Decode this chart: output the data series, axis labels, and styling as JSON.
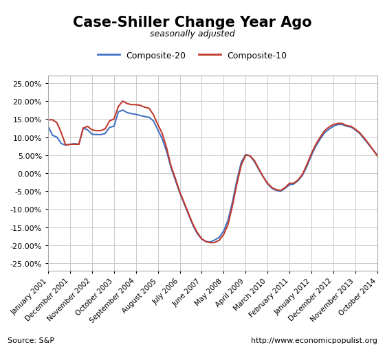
{
  "title": "Case-Shiller Change Year Ago",
  "subtitle": "seasonally adjusted",
  "source_left": "Source: S&P",
  "source_right": "http://www.economicpopulist.org",
  "legend_labels": [
    "Composite-20",
    "Composite-10"
  ],
  "line_colors": [
    "#4472c4",
    "#c0392b"
  ],
  "ylim": [
    -0.27,
    0.27
  ],
  "yticks": [
    -0.25,
    -0.2,
    -0.15,
    -0.1,
    -0.05,
    0.0,
    0.05,
    0.1,
    0.15,
    0.2,
    0.25
  ],
  "xtick_labels": [
    "January 2001",
    "December 2001",
    "November 2002",
    "October 2003",
    "September 2004",
    "August 2005",
    "July 2006",
    "June 2007",
    "May 2008",
    "April 2009",
    "March 2010",
    "February 2011",
    "January 2012",
    "December 2012",
    "November 2013",
    "October 2014"
  ],
  "composite20": [
    0.13,
    0.105,
    0.1,
    0.082,
    0.078,
    0.08,
    0.082,
    0.08,
    0.125,
    0.12,
    0.108,
    0.107,
    0.107,
    0.11,
    0.127,
    0.13,
    0.17,
    0.175,
    0.168,
    0.165,
    0.163,
    0.16,
    0.157,
    0.155,
    0.145,
    0.12,
    0.095,
    0.06,
    0.015,
    -0.02,
    -0.055,
    -0.085,
    -0.115,
    -0.145,
    -0.168,
    -0.183,
    -0.19,
    -0.191,
    -0.185,
    -0.178,
    -0.16,
    -0.13,
    -0.08,
    -0.02,
    0.03,
    0.052,
    0.048,
    0.032,
    0.01,
    -0.01,
    -0.03,
    -0.042,
    -0.048,
    -0.05,
    -0.042,
    -0.032,
    -0.03,
    -0.02,
    -0.005,
    0.02,
    0.05,
    0.075,
    0.095,
    0.112,
    0.122,
    0.13,
    0.135,
    0.135,
    0.13,
    0.128,
    0.12,
    0.11,
    0.095,
    0.08,
    0.065,
    0.05
  ],
  "composite10": [
    0.148,
    0.148,
    0.14,
    0.112,
    0.078,
    0.08,
    0.08,
    0.08,
    0.125,
    0.13,
    0.12,
    0.118,
    0.118,
    0.123,
    0.145,
    0.15,
    0.185,
    0.2,
    0.193,
    0.19,
    0.19,
    0.188,
    0.183,
    0.18,
    0.162,
    0.135,
    0.11,
    0.07,
    0.02,
    -0.015,
    -0.052,
    -0.082,
    -0.112,
    -0.142,
    -0.165,
    -0.182,
    -0.19,
    -0.193,
    -0.192,
    -0.186,
    -0.17,
    -0.142,
    -0.09,
    -0.03,
    0.022,
    0.05,
    0.048,
    0.035,
    0.012,
    -0.01,
    -0.028,
    -0.04,
    -0.046,
    -0.048,
    -0.04,
    -0.028,
    -0.028,
    -0.018,
    -0.002,
    0.025,
    0.055,
    0.08,
    0.1,
    0.118,
    0.128,
    0.135,
    0.138,
    0.138,
    0.132,
    0.13,
    0.122,
    0.112,
    0.098,
    0.082,
    0.065,
    0.048
  ]
}
